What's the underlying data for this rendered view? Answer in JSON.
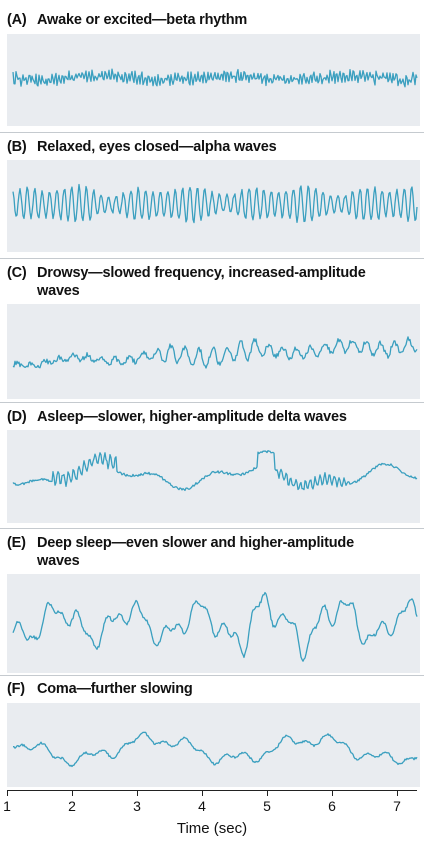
{
  "line_color": "#3a9fbf",
  "panel_bg": "#e9ecf0",
  "panels": [
    {
      "label": "(A)",
      "title": "Awake or excited—beta rhythm",
      "title2": ""
    },
    {
      "label": "(B)",
      "title": "Relaxed, eyes closed—alpha waves",
      "title2": ""
    },
    {
      "label": "(C)",
      "title": "Drowsy—slowed frequency, increased-amplitude",
      "title2": "waves"
    },
    {
      "label": "(D)",
      "title": "Asleep—slower, higher-amplitude delta waves",
      "title2": ""
    },
    {
      "label": "(E)",
      "title": "Deep sleep—even slower and higher-amplitude",
      "title2": "waves"
    },
    {
      "label": "(F)",
      "title": "Coma—further slowing",
      "title2": ""
    }
  ],
  "axis": {
    "title": "Time (sec)",
    "ticks": [
      "1",
      "2",
      "3",
      "4",
      "5",
      "6",
      "7"
    ]
  }
}
